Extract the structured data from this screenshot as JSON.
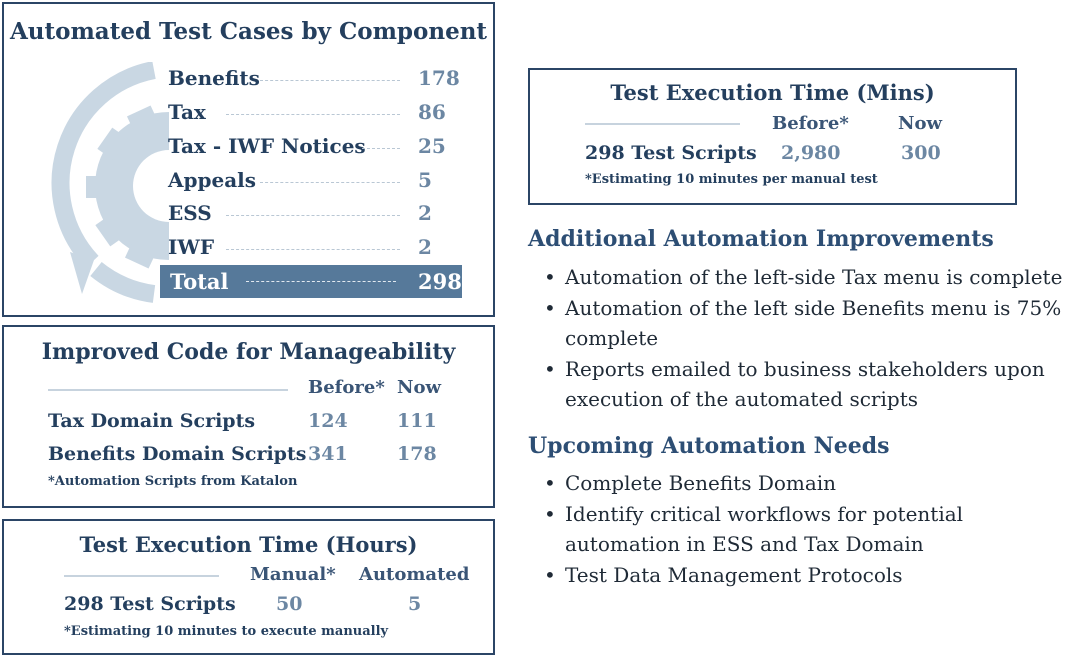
{
  "components": {
    "title": "Automated Test Cases by Component",
    "rows": [
      {
        "name": "Benefits",
        "count": "178"
      },
      {
        "name": "Tax",
        "count": "86"
      },
      {
        "name": "Tax - IWF Notices",
        "count": "25"
      },
      {
        "name": "Appeals",
        "count": "5"
      },
      {
        "name": "ESS",
        "count": "2"
      },
      {
        "name": "IWF",
        "count": "2"
      }
    ],
    "total": {
      "name": "Total",
      "count": "298"
    },
    "icon": "gear-cycle-icon"
  },
  "code": {
    "title": "Improved Code for Manageability",
    "col_before": "Before*",
    "col_now": "Now",
    "rows": [
      {
        "label": "Tax Domain Scripts",
        "before": "124",
        "now": "111"
      },
      {
        "label": "Benefits Domain Scripts",
        "before": "341",
        "now": "178"
      }
    ],
    "note": "*Automation Scripts from Katalon"
  },
  "hours": {
    "title": "Test Execution Time (Hours)",
    "col_manual": "Manual*",
    "col_automated": "Automated",
    "row": {
      "label": "298 Test Scripts",
      "manual": "50",
      "automated": "5"
    },
    "note": "*Estimating 10 minutes to execute manually"
  },
  "mins": {
    "title": "Test Execution Time (Mins)",
    "col_before": "Before*",
    "col_now": "Now",
    "row": {
      "label": "298 Test Scripts",
      "before": "2,980",
      "now": "300"
    },
    "note": "*Estimating 10 minutes per manual test"
  },
  "improvements": {
    "heading": "Additional Automation Improvements",
    "items": [
      "Automation of the left-side Tax menu is complete",
      "Automation of the left side Benefits menu is 75% complete",
      "Reports emailed to business stakeholders upon execution of the automated scripts"
    ]
  },
  "needs": {
    "heading": "Upcoming Automation Needs",
    "items": [
      "Complete Benefits Domain",
      "Identify critical workflows for potential automation in ESS and Tax Domain",
      "Test Data Management Protocols"
    ]
  },
  "colors": {
    "navy": "#243f5e",
    "steel": "#56799a",
    "value": "#6c87a3",
    "gear": "#c9d7e3"
  }
}
